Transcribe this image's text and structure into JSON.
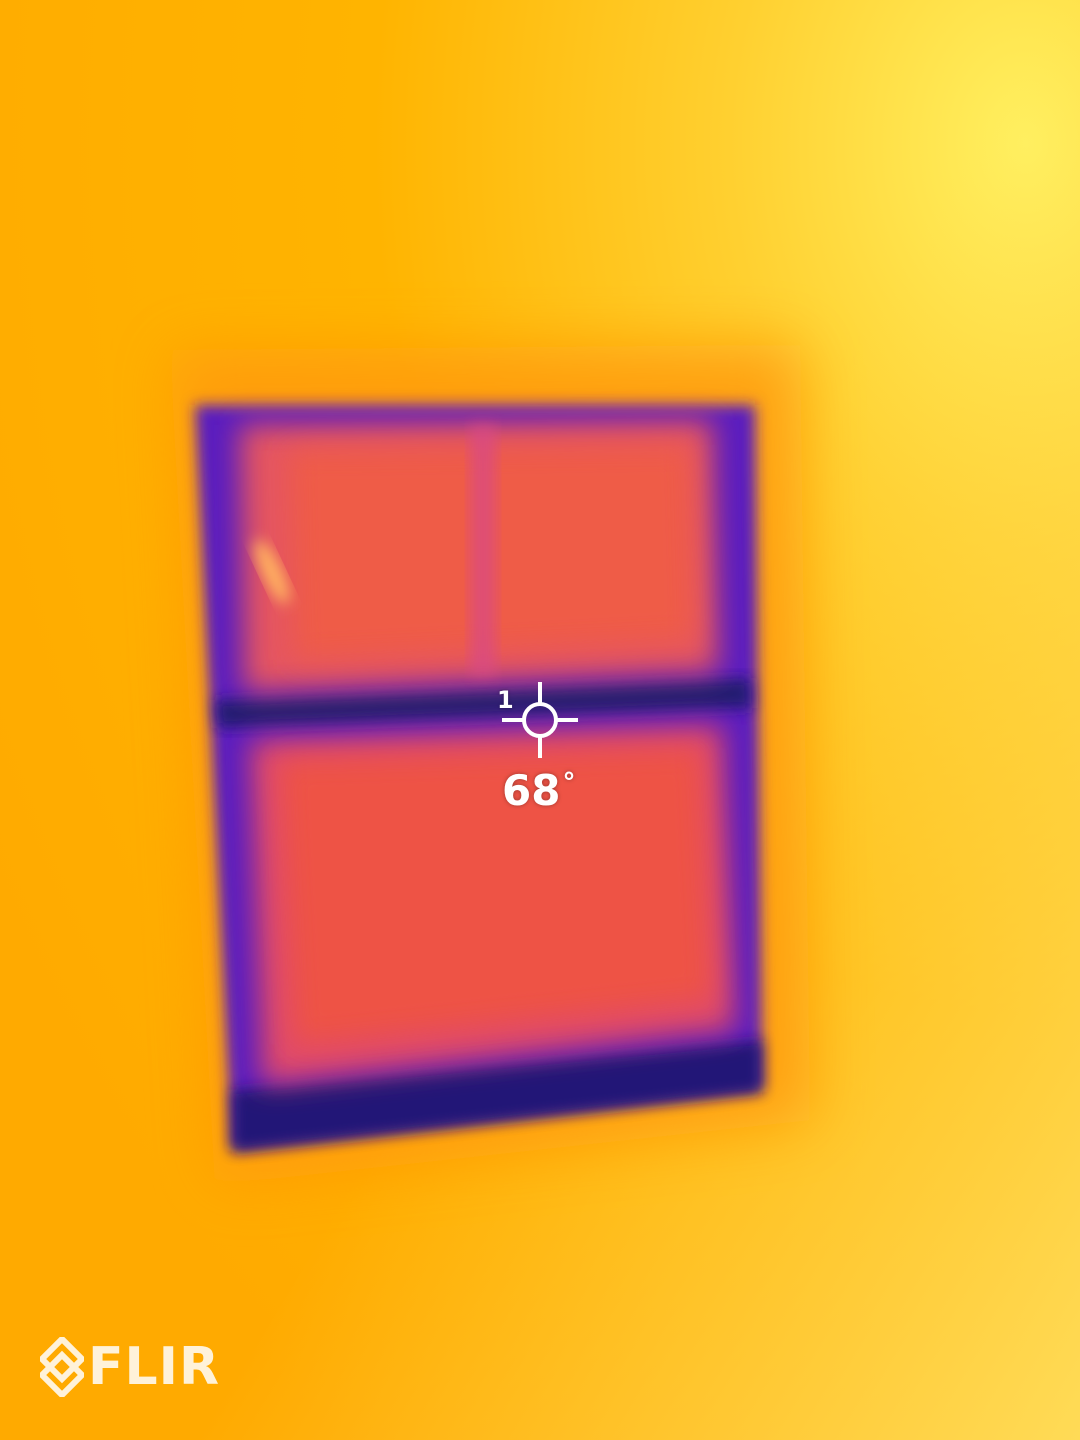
{
  "overlay": {
    "spot_id": "1",
    "temperature": "68",
    "degree_symbol": "°"
  },
  "logo": {
    "brand": "FLIR"
  },
  "palette": {
    "hot_yellow": "#ffe14a",
    "warm_orange": "#ffb000",
    "mid_red": "#ef5a45",
    "cool_purple": "#7a20c8",
    "cold_navy": "#1a1a7a",
    "overlay_white": "#ffffff"
  },
  "icons": {
    "spot_meter": "crosshair-icon",
    "logo_mark": "flir-diamond-icon"
  }
}
